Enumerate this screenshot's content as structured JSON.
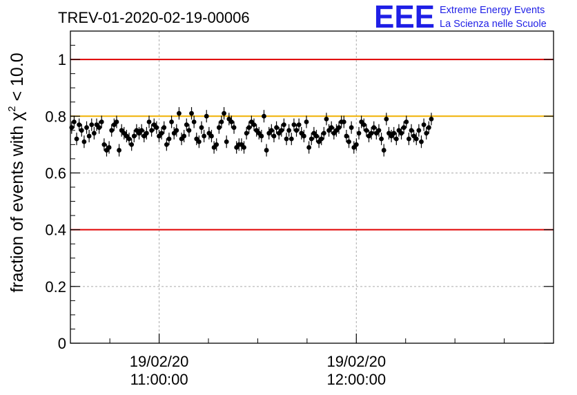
{
  "chart_data": {
    "type": "scatter",
    "title": "TREV-01-2020-02-19-00006",
    "ylabel_prefix": "fraction of events with ",
    "ylabel_symbol": "χ",
    "ylabel_superscript": "2",
    "ylabel_suffix": " < 10.0",
    "ylim": [
      0,
      1.1
    ],
    "yticks": [
      "0",
      "0.2",
      "0.4",
      "0.6",
      "0.8",
      "1"
    ],
    "ytick_values": [
      0,
      0.2,
      0.4,
      0.6,
      0.8,
      1.0
    ],
    "xlim": [
      "2020-02-19 10:33:00",
      "2020-02-19 12:60:00"
    ],
    "xticks": [
      {
        "date": "19/02/20",
        "time": "11:00:00"
      },
      {
        "date": "19/02/20",
        "time": "12:00:00"
      }
    ],
    "grid": true,
    "reference_lines": [
      {
        "y": 1.0,
        "color": "#e00000"
      },
      {
        "y": 0.4,
        "color": "#e00000"
      },
      {
        "y": 0.8,
        "color": "#f0b000"
      }
    ],
    "marker_color": "#000000",
    "x_interval_minutes": 0.76,
    "y_error": 0.022,
    "values": [
      0.76,
      0.78,
      0.72,
      0.77,
      0.75,
      0.71,
      0.76,
      0.73,
      0.77,
      0.74,
      0.77,
      0.76,
      0.78,
      0.7,
      0.68,
      0.69,
      0.75,
      0.77,
      0.78,
      0.68,
      0.75,
      0.74,
      0.73,
      0.72,
      0.7,
      0.73,
      0.75,
      0.74,
      0.75,
      0.73,
      0.74,
      0.78,
      0.75,
      0.77,
      0.76,
      0.73,
      0.74,
      0.76,
      0.7,
      0.72,
      0.78,
      0.74,
      0.75,
      0.81,
      0.72,
      0.73,
      0.77,
      0.75,
      0.81,
      0.78,
      0.72,
      0.71,
      0.76,
      0.73,
      0.8,
      0.74,
      0.73,
      0.69,
      0.7,
      0.76,
      0.78,
      0.81,
      0.71,
      0.79,
      0.78,
      0.76,
      0.69,
      0.7,
      0.7,
      0.69,
      0.74,
      0.76,
      0.78,
      0.77,
      0.75,
      0.74,
      0.73,
      0.8,
      0.68,
      0.74,
      0.75,
      0.73,
      0.76,
      0.74,
      0.75,
      0.77,
      0.72,
      0.75,
      0.72,
      0.77,
      0.75,
      0.77,
      0.74,
      0.73,
      0.78,
      0.69,
      0.72,
      0.74,
      0.73,
      0.71,
      0.72,
      0.74,
      0.79,
      0.75,
      0.76,
      0.74,
      0.75,
      0.76,
      0.78,
      0.78,
      0.73,
      0.71,
      0.76,
      0.69,
      0.7,
      0.74,
      0.78,
      0.77,
      0.75,
      0.73,
      0.74,
      0.76,
      0.74,
      0.75,
      0.72,
      0.68,
      0.79,
      0.74,
      0.73,
      0.74,
      0.72,
      0.75,
      0.74,
      0.76,
      0.78,
      0.72,
      0.75,
      0.73,
      0.72,
      0.75,
      0.71,
      0.77,
      0.74,
      0.76,
      0.79
    ]
  },
  "logo": {
    "letters": "EEE",
    "line1": "Extreme Energy Events",
    "line2": "La Scienza nelle Scuole"
  },
  "colors": {
    "logo": "#1f1fe6",
    "grid": "#aaaaaa"
  }
}
